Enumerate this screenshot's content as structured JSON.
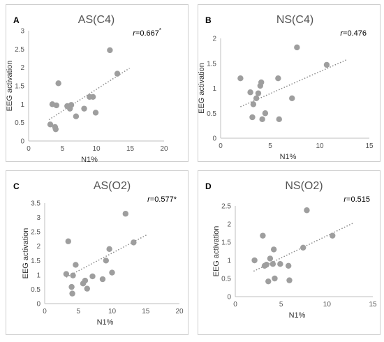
{
  "chart_data": [
    {
      "id": "A",
      "type": "scatter",
      "panel_letter": "A",
      "title": "AS(C4)",
      "xlabel": "N1%",
      "ylabel": "EEG activation",
      "xlim": [
        0,
        20
      ],
      "ylim": [
        0,
        3
      ],
      "xticks": [
        "0",
        "5",
        "10",
        "15",
        "20"
      ],
      "yticks": [
        "0",
        "0.5",
        "1",
        "1.5",
        "2",
        "2.5",
        "3"
      ],
      "r_label": "r=0.667",
      "r_suffix": "*",
      "grid": false,
      "trendline": {
        "x": [
          3.0,
          14.9
        ],
        "y": [
          0.58,
          1.98
        ]
      },
      "points": [
        {
          "x": 3.2,
          "y": 0.45
        },
        {
          "x": 3.5,
          "y": 1.0
        },
        {
          "x": 3.9,
          "y": 0.38
        },
        {
          "x": 4.0,
          "y": 0.32
        },
        {
          "x": 4.1,
          "y": 0.97
        },
        {
          "x": 4.4,
          "y": 1.57
        },
        {
          "x": 5.7,
          "y": 0.95
        },
        {
          "x": 6.1,
          "y": 0.88
        },
        {
          "x": 6.3,
          "y": 0.98
        },
        {
          "x": 7.0,
          "y": 0.67
        },
        {
          "x": 8.2,
          "y": 0.88
        },
        {
          "x": 9.0,
          "y": 1.2
        },
        {
          "x": 9.5,
          "y": 1.2
        },
        {
          "x": 9.9,
          "y": 0.77
        },
        {
          "x": 12.0,
          "y": 2.47
        },
        {
          "x": 13.1,
          "y": 1.83
        }
      ]
    },
    {
      "id": "B",
      "type": "scatter",
      "panel_letter": "B",
      "title": "NS(C4)",
      "xlabel": "N1%",
      "ylabel": "EEG activation",
      "xlim": [
        0,
        15
      ],
      "ylim": [
        0,
        2
      ],
      "xticks": [
        "0",
        "5",
        "10",
        "15"
      ],
      "yticks": [
        "0",
        "0.5",
        "1",
        "1.5",
        "2"
      ],
      "r_label": "r=0.476",
      "r_suffix": "",
      "grid": false,
      "trendline": {
        "x": [
          2.0,
          12.8
        ],
        "y": [
          0.63,
          1.58
        ]
      },
      "points": [
        {
          "x": 2.0,
          "y": 1.2
        },
        {
          "x": 3.0,
          "y": 0.92
        },
        {
          "x": 3.2,
          "y": 0.42
        },
        {
          "x": 3.3,
          "y": 0.68
        },
        {
          "x": 3.6,
          "y": 0.8
        },
        {
          "x": 3.8,
          "y": 0.9
        },
        {
          "x": 4.0,
          "y": 1.05
        },
        {
          "x": 4.1,
          "y": 1.12
        },
        {
          "x": 4.2,
          "y": 0.38
        },
        {
          "x": 4.5,
          "y": 0.5
        },
        {
          "x": 5.8,
          "y": 1.2
        },
        {
          "x": 5.9,
          "y": 0.38
        },
        {
          "x": 7.2,
          "y": 0.8
        },
        {
          "x": 7.7,
          "y": 1.82
        },
        {
          "x": 10.7,
          "y": 1.47
        }
      ]
    },
    {
      "id": "C",
      "type": "scatter",
      "panel_letter": "C",
      "title": "AS(O2)",
      "xlabel": "N1%",
      "ylabel": "EEG activation",
      "xlim": [
        0,
        20
      ],
      "ylim": [
        0,
        3.5
      ],
      "xticks": [
        "0",
        "5",
        "10",
        "15",
        "20"
      ],
      "yticks": [
        "0",
        "0.5",
        "1",
        "1.5",
        "2",
        "2.5",
        "3",
        "3.5"
      ],
      "r_label": "r=0.577*",
      "r_suffix": "",
      "grid": false,
      "trendline": {
        "x": [
          3.2,
          15.2
        ],
        "y": [
          0.92,
          2.4
        ]
      },
      "points": [
        {
          "x": 3.2,
          "y": 1.03
        },
        {
          "x": 3.5,
          "y": 2.17
        },
        {
          "x": 4.0,
          "y": 0.58
        },
        {
          "x": 4.1,
          "y": 0.35
        },
        {
          "x": 4.2,
          "y": 0.98
        },
        {
          "x": 4.6,
          "y": 1.35
        },
        {
          "x": 5.7,
          "y": 0.7
        },
        {
          "x": 6.0,
          "y": 0.8
        },
        {
          "x": 6.3,
          "y": 0.52
        },
        {
          "x": 7.1,
          "y": 0.95
        },
        {
          "x": 8.6,
          "y": 0.85
        },
        {
          "x": 9.1,
          "y": 1.5
        },
        {
          "x": 9.6,
          "y": 1.9
        },
        {
          "x": 10.0,
          "y": 1.08
        },
        {
          "x": 12.0,
          "y": 3.13
        },
        {
          "x": 13.2,
          "y": 2.13
        }
      ]
    },
    {
      "id": "D",
      "type": "scatter",
      "panel_letter": "D",
      "title": "NS(O2)",
      "xlabel": "N1%",
      "ylabel": "EEG activation",
      "xlim": [
        0,
        15
      ],
      "ylim": [
        0,
        2.5
      ],
      "xticks": [
        "0",
        "5",
        "10",
        "15"
      ],
      "yticks": [
        "0",
        "0.5",
        "1",
        "1.5",
        "2",
        "2.5"
      ],
      "r_label": "r=0.515",
      "r_suffix": "",
      "grid": false,
      "trendline": {
        "x": [
          2.0,
          12.8
        ],
        "y": [
          0.7,
          2.02
        ]
      },
      "points": [
        {
          "x": 2.1,
          "y": 1.0
        },
        {
          "x": 3.0,
          "y": 1.68
        },
        {
          "x": 3.2,
          "y": 0.85
        },
        {
          "x": 3.4,
          "y": 0.88
        },
        {
          "x": 3.6,
          "y": 0.42
        },
        {
          "x": 3.8,
          "y": 1.05
        },
        {
          "x": 4.1,
          "y": 0.9
        },
        {
          "x": 4.2,
          "y": 1.3
        },
        {
          "x": 4.3,
          "y": 0.5
        },
        {
          "x": 4.9,
          "y": 0.9
        },
        {
          "x": 5.8,
          "y": 0.85
        },
        {
          "x": 5.9,
          "y": 0.45
        },
        {
          "x": 7.4,
          "y": 1.35
        },
        {
          "x": 7.8,
          "y": 2.38
        },
        {
          "x": 10.6,
          "y": 1.68
        }
      ]
    }
  ]
}
